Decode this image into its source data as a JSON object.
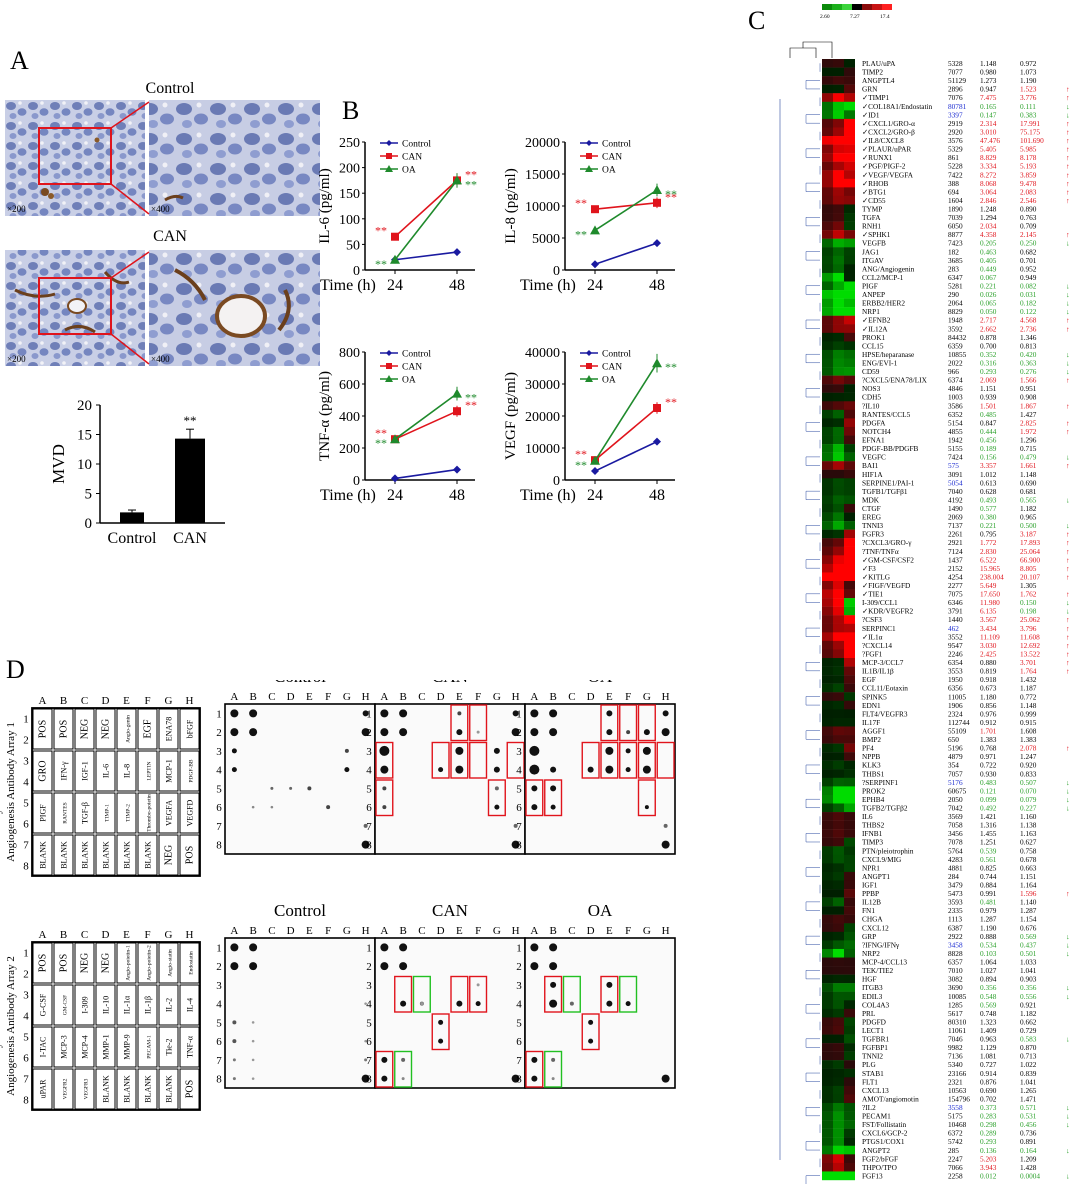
{
  "panels": {
    "a": "A",
    "b": "B",
    "c": "C",
    "d": "D"
  },
  "panel_a": {
    "control_label": "Control",
    "can_label": "CAN",
    "mag_200": "×200",
    "mag_400": "×400",
    "mvd_chart": {
      "type": "bar",
      "ylabel": "MVD",
      "categories": [
        "Control",
        "CAN"
      ],
      "values": [
        1.8,
        14.3
      ],
      "errors": [
        0.4,
        1.6
      ],
      "ylim": [
        0,
        20
      ],
      "yticks": [
        "0",
        "5",
        "10",
        "15",
        "20"
      ],
      "annotation": "**"
    }
  },
  "panel_b": {
    "legend": [
      "Control",
      "CAN",
      "OA"
    ],
    "xlabel": "Time (h)",
    "xticks": [
      "24",
      "48"
    ],
    "sig": "**",
    "charts": [
      {
        "ylabel": "IL-6 (pg/ml)",
        "yticks": [
          "0",
          "50",
          "100",
          "150",
          "200",
          "250"
        ],
        "ylim": [
          0,
          250
        ],
        "series": [
          {
            "name": "Control",
            "values": [
              20,
              35
            ]
          },
          {
            "name": "CAN",
            "values": [
              65,
              175
            ]
          },
          {
            "name": "OA",
            "values": [
              20,
              175
            ]
          }
        ]
      },
      {
        "ylabel": "IL-8 (pg/ml)",
        "yticks": [
          "0",
          "5000",
          "10000",
          "15000",
          "20000"
        ],
        "ylim": [
          0,
          20000
        ],
        "series": [
          {
            "name": "Control",
            "values": [
              900,
              4200
            ]
          },
          {
            "name": "CAN",
            "values": [
              9500,
              10500
            ]
          },
          {
            "name": "OA",
            "values": [
              6200,
              12500
            ]
          }
        ]
      },
      {
        "ylabel": "TNF-α (pg/ml)",
        "yticks": [
          "0",
          "200",
          "400",
          "600",
          "800"
        ],
        "ylim": [
          0,
          800
        ],
        "series": [
          {
            "name": "Control",
            "values": [
              10,
              65
            ]
          },
          {
            "name": "CAN",
            "values": [
              255,
              430
            ]
          },
          {
            "name": "OA",
            "values": [
              255,
              540
            ]
          }
        ]
      },
      {
        "ylabel": "VEGF (pg/ml)",
        "yticks": [
          "0",
          "10000",
          "20000",
          "30000",
          "40000"
        ],
        "ylim": [
          0,
          40000
        ],
        "series": [
          {
            "name": "Control",
            "values": [
              2800,
              12000
            ]
          },
          {
            "name": "CAN",
            "values": [
              6200,
              22500
            ]
          },
          {
            "name": "OA",
            "values": [
              6000,
              36500
            ]
          }
        ]
      }
    ]
  },
  "panel_c": {
    "color_scale": [
      "2.60",
      "7.27",
      "17.4"
    ],
    "genes": [
      [
        "PLAU/uPA",
        "5328",
        "1.148",
        "0.972",
        "",
        ""
      ],
      [
        "TIMP2",
        "7077",
        "0.980",
        "1.073",
        "",
        ""
      ],
      [
        "ANGPTL4",
        "51129",
        "1.273",
        "1.190",
        "",
        ""
      ],
      [
        "GRN",
        "2896",
        "0.947",
        "1.523",
        "",
        "r"
      ],
      [
        "✓TIMP1",
        "7076",
        "7.475",
        "3.776",
        "r",
        "r"
      ],
      [
        "✓COL18A1/Endostatin",
        "80781",
        "0.165",
        "0.111",
        "g",
        "g"
      ],
      [
        "✓ID1",
        "3397",
        "0.147",
        "0.383",
        "g",
        "g"
      ],
      [
        "✓CXCL1/GRO-α",
        "2919",
        "2.314",
        "17.991",
        "r",
        "r"
      ],
      [
        "✓CXCL2/GRO-β",
        "2920",
        "3.010",
        "75.175",
        "r",
        "r"
      ],
      [
        "✓IL8/CXCL8",
        "3576",
        "47.476",
        "101.690",
        "r",
        "r"
      ],
      [
        "✓PLAUR/uPAR",
        "5329",
        "5.405",
        "5.985",
        "r",
        "r"
      ],
      [
        "✓RUNX1",
        "861",
        "8.829",
        "8.178",
        "r",
        "r"
      ],
      [
        "✓PGF/PIGF-2",
        "5228",
        "3.334",
        "5.193",
        "r",
        "r"
      ],
      [
        "✓VEGF/VEGFA",
        "7422",
        "8.272",
        "3.859",
        "r",
        "r"
      ],
      [
        "✓RHOB",
        "388",
        "8.068",
        "9.478",
        "r",
        "r"
      ],
      [
        "✓BTG1",
        "694",
        "3.064",
        "2.083",
        "r",
        "r"
      ],
      [
        "✓CD55",
        "1604",
        "2.846",
        "2.546",
        "r",
        "r"
      ],
      [
        "TYMP",
        "1890",
        "1.248",
        "0.890",
        "",
        ""
      ],
      [
        "TGFA",
        "7039",
        "1.294",
        "0.763",
        "",
        ""
      ],
      [
        "RNH1",
        "6050",
        "2.034",
        "0.709",
        "r",
        ""
      ],
      [
        "✓SPHK1",
        "8877",
        "4.358",
        "2.145",
        "r",
        "r"
      ],
      [
        "VEGFB",
        "7423",
        "0.205",
        "0.250",
        "g",
        "g"
      ],
      [
        "JAG1",
        "182",
        "0.463",
        "0.682",
        "g",
        ""
      ],
      [
        "ITGAV",
        "3685",
        "0.405",
        "0.701",
        "g",
        ""
      ],
      [
        "ANG/Angiogenin",
        "283",
        "0.449",
        "0.952",
        "g",
        ""
      ],
      [
        "CCL2/MCP-1",
        "6347",
        "0.067",
        "0.949",
        "g",
        ""
      ],
      [
        "PIGF",
        "5281",
        "0.221",
        "0.082",
        "g",
        "g"
      ],
      [
        "ANPEP",
        "290",
        "0.026",
        "0.031",
        "g",
        "g"
      ],
      [
        "ERBB2/HER2",
        "2064",
        "0.065",
        "0.182",
        "g",
        "g"
      ],
      [
        "NRP1",
        "8829",
        "0.050",
        "0.122",
        "g",
        "g"
      ],
      [
        "✓EFNB2",
        "1948",
        "2.717",
        "4.568",
        "r",
        "r"
      ],
      [
        "✓IL12A",
        "3592",
        "2.662",
        "2.736",
        "r",
        "r"
      ],
      [
        "PROK1",
        "84432",
        "0.878",
        "1.346",
        "",
        ""
      ],
      [
        "CCL15",
        "6359",
        "0.700",
        "0.813",
        "",
        ""
      ],
      [
        "HPSE/heparanase",
        "10855",
        "0.352",
        "0.420",
        "g",
        "g"
      ],
      [
        "ENG/EVI-1",
        "2022",
        "0.316",
        "0.363",
        "g",
        "g"
      ],
      [
        "CD59",
        "966",
        "0.293",
        "0.276",
        "g",
        "g"
      ],
      [
        "?CXCL5/ENA78/LIX",
        "6374",
        "2.069",
        "1.566",
        "r",
        "r"
      ],
      [
        "NOS3",
        "4846",
        "1.151",
        "0.951",
        "",
        ""
      ],
      [
        "CDH5",
        "1003",
        "0.939",
        "0.908",
        "",
        ""
      ],
      [
        "?IL10",
        "3586",
        "1.501",
        "1.867",
        "r",
        "r"
      ],
      [
        "RANTES/CCL5",
        "6352",
        "0.485",
        "1.427",
        "g",
        ""
      ],
      [
        "PDGFA",
        "5154",
        "0.847",
        "2.825",
        "",
        "r"
      ],
      [
        "NOTCH4",
        "4855",
        "0.444",
        "1.972",
        "g",
        "r"
      ],
      [
        "EFNA1",
        "1942",
        "0.456",
        "1.296",
        "g",
        ""
      ],
      [
        "PDGF-BB/PDGFB",
        "5155",
        "0.189",
        "0.715",
        "g",
        ""
      ],
      [
        "VEGFC",
        "7424",
        "0.156",
        "0.479",
        "g",
        "g"
      ],
      [
        "BAI1",
        "575",
        "3.357",
        "1.661",
        "r",
        "r"
      ],
      [
        "HIF1A",
        "3091",
        "1.012",
        "1.148",
        "",
        ""
      ],
      [
        "SERPINE1/PAI-1",
        "5054",
        "0.613",
        "0.690",
        "",
        ""
      ],
      [
        "TGFB1/TGFβ1",
        "7040",
        "0.628",
        "0.681",
        "",
        ""
      ],
      [
        "MDK",
        "4192",
        "0.493",
        "0.565",
        "g",
        "g"
      ],
      [
        "CTGF",
        "1490",
        "0.577",
        "1.182",
        "g",
        ""
      ],
      [
        "EREG",
        "2069",
        "0.380",
        "0.965",
        "g",
        ""
      ],
      [
        "TNNI3",
        "7137",
        "0.221",
        "0.500",
        "g",
        "g"
      ],
      [
        "FGFR3",
        "2261",
        "0.795",
        "3.187",
        "",
        "r"
      ],
      [
        "?CXCL3/GRO-γ",
        "2921",
        "1.772",
        "17.893",
        "r",
        "r"
      ],
      [
        "?TNF/TNFα",
        "7124",
        "2.830",
        "25.064",
        "r",
        "r"
      ],
      [
        "✓GM-CSF/CSF2",
        "1437",
        "6.522",
        "66.900",
        "r",
        "r"
      ],
      [
        "✓F3",
        "2152",
        "15.965",
        "8.805",
        "r",
        "r"
      ],
      [
        "✓KITLG",
        "4254",
        "238.004",
        "20.107",
        "r",
        "r"
      ],
      [
        "✓FIGF/VEGFD",
        "2277",
        "5.649",
        "1.305",
        "r",
        ""
      ],
      [
        "✓TIE1",
        "7075",
        "17.650",
        "1.762",
        "r",
        "r"
      ],
      [
        "I-309/CCL1",
        "6346",
        "11.980",
        "0.150",
        "r",
        "g"
      ],
      [
        "✓KDR/VEGFR2",
        "3791",
        "6.135",
        "0.198",
        "r",
        "g"
      ],
      [
        "?CSF3",
        "1440",
        "3.567",
        "25.062",
        "r",
        "r"
      ],
      [
        "SERPINC1",
        "462",
        "3.434",
        "3.796",
        "r",
        "r"
      ],
      [
        "✓IL1α",
        "3552",
        "11.109",
        "11.608",
        "r",
        "r"
      ],
      [
        "?CXCL14",
        "9547",
        "3.030",
        "12.692",
        "r",
        "r"
      ],
      [
        "?FGF1",
        "2246",
        "2.425",
        "13.522",
        "r",
        "r"
      ],
      [
        "MCP-3/CCL7",
        "6354",
        "0.880",
        "3.701",
        "",
        "r"
      ],
      [
        "IL1B/IL1β",
        "3553",
        "0.819",
        "1.764",
        "",
        "r"
      ],
      [
        "EGF",
        "1950",
        "0.918",
        "1.432",
        "",
        ""
      ],
      [
        "CCL11/Eotaxin",
        "6356",
        "0.673",
        "1.187",
        "",
        ""
      ],
      [
        "SPINK5",
        "11005",
        "1.180",
        "0.772",
        "",
        ""
      ],
      [
        "EDN1",
        "1906",
        "0.856",
        "1.148",
        "",
        ""
      ],
      [
        "FLT4/VEGFR3",
        "2324",
        "0.976",
        "0.999",
        "",
        ""
      ],
      [
        "IL17F",
        "112744",
        "0.912",
        "0.915",
        "",
        ""
      ],
      [
        "AGGF1",
        "55109",
        "1.701",
        "1.608",
        "r",
        ""
      ],
      [
        "BMP2",
        "650",
        "1.383",
        "1.383",
        "",
        ""
      ],
      [
        "PF4",
        "5196",
        "0.768",
        "2.078",
        "",
        "r"
      ],
      [
        "NPPB",
        "4879",
        "0.971",
        "1.247",
        "",
        ""
      ],
      [
        "KLK3",
        "354",
        "0.722",
        "0.920",
        "",
        ""
      ],
      [
        "THBS1",
        "7057",
        "0.930",
        "0.833",
        "",
        ""
      ],
      [
        "?SERPINF1",
        "5176",
        "0.483",
        "0.507",
        "g",
        "g"
      ],
      [
        "PROK2",
        "60675",
        "0.121",
        "0.070",
        "g",
        "g"
      ],
      [
        "EPHB4",
        "2050",
        "0.099",
        "0.079",
        "g",
        "g"
      ],
      [
        "TGFB2/TGFβ2",
        "7042",
        "0.492",
        "0.227",
        "g",
        "g"
      ],
      [
        "IL6",
        "3569",
        "1.421",
        "1.160",
        "",
        ""
      ],
      [
        "THBS2",
        "7058",
        "1.316",
        "1.138",
        "",
        ""
      ],
      [
        "IFNB1",
        "3456",
        "1.455",
        "1.163",
        "",
        ""
      ],
      [
        "TIMP3",
        "7078",
        "1.251",
        "0.627",
        "",
        ""
      ],
      [
        "PTN/pleiotrophin",
        "5764",
        "0.539",
        "0.758",
        "g",
        ""
      ],
      [
        "CXCL9/MIG",
        "4283",
        "0.561",
        "0.678",
        "g",
        ""
      ],
      [
        "NPR1",
        "4881",
        "0.825",
        "0.663",
        "",
        ""
      ],
      [
        "ANGPT1",
        "284",
        "0.744",
        "1.151",
        "",
        ""
      ],
      [
        "IGF1",
        "3479",
        "0.884",
        "1.164",
        "",
        ""
      ],
      [
        "PPBP",
        "5473",
        "0.991",
        "1.596",
        "",
        "r"
      ],
      [
        "IL12B",
        "3593",
        "0.481",
        "1.140",
        "g",
        ""
      ],
      [
        "FN1",
        "2335",
        "0.979",
        "1.287",
        "",
        ""
      ],
      [
        "CHGA",
        "1113",
        "1.287",
        "1.154",
        "",
        ""
      ],
      [
        "CXCL12",
        "6387",
        "1.190",
        "0.676",
        "",
        ""
      ],
      [
        "GRP",
        "2922",
        "0.888",
        "0.569",
        "",
        "g"
      ],
      [
        "?IFNG/IFNγ",
        "3458",
        "0.534",
        "0.437",
        "g",
        "g"
      ],
      [
        "NRP2",
        "8828",
        "0.103",
        "0.501",
        "g",
        "g"
      ],
      [
        "MCP-4/CCL13",
        "6357",
        "1.064",
        "1.033",
        "",
        ""
      ],
      [
        "TEK/TIE2",
        "7010",
        "1.027",
        "1.041",
        "",
        ""
      ],
      [
        "HGF",
        "3082",
        "0.894",
        "0.903",
        "",
        ""
      ],
      [
        "ITGB3",
        "3690",
        "0.356",
        "0.356",
        "g",
        "g"
      ],
      [
        "EDIL3",
        "10085",
        "0.548",
        "0.556",
        "g",
        "g"
      ],
      [
        "COL4A3",
        "1285",
        "0.569",
        "0.921",
        "g",
        ""
      ],
      [
        "PRL",
        "5617",
        "0.748",
        "1.182",
        "",
        ""
      ],
      [
        "PDGFD",
        "80310",
        "1.323",
        "0.662",
        "",
        ""
      ],
      [
        "LECT1",
        "11061",
        "1.409",
        "0.729",
        "",
        ""
      ],
      [
        "TGFBR1",
        "7046",
        "0.963",
        "0.583",
        "",
        "g"
      ],
      [
        "FGFBP1",
        "9982",
        "1.129",
        "0.870",
        "",
        ""
      ],
      [
        "TNNI2",
        "7136",
        "1.081",
        "0.713",
        "",
        ""
      ],
      [
        "PLG",
        "5340",
        "0.727",
        "1.022",
        "",
        ""
      ],
      [
        "STAB1",
        "23166",
        "0.914",
        "0.839",
        "",
        ""
      ],
      [
        "FLT1",
        "2321",
        "0.876",
        "1.041",
        "",
        ""
      ],
      [
        "CXCL13",
        "10563",
        "0.690",
        "1.265",
        "",
        ""
      ],
      [
        "AMOT/angiomotin",
        "154796",
        "0.702",
        "1.471",
        "",
        ""
      ],
      [
        "?IL2",
        "3558",
        "0.373",
        "0.571",
        "g",
        "g"
      ],
      [
        "PECAM1",
        "5175",
        "0.283",
        "0.531",
        "g",
        "g"
      ],
      [
        "FST/Follistatin",
        "10468",
        "0.298",
        "0.456",
        "g",
        "g"
      ],
      [
        "CXCL6/GCP-2",
        "6372",
        "0.289",
        "0.736",
        "g",
        ""
      ],
      [
        "PTGS1/COX1",
        "5742",
        "0.293",
        "0.891",
        "g",
        ""
      ],
      [
        "ANGPT2",
        "285",
        "0.136",
        "0.164",
        "g",
        "g"
      ],
      [
        "FGF2/bFGF",
        "2247",
        "5.203",
        "1.209",
        "r",
        ""
      ],
      [
        "THPO/TPO",
        "7066",
        "3.943",
        "1.428",
        "r",
        ""
      ],
      [
        "FGF13",
        "2258",
        "0.012",
        "0.0004",
        "g",
        "g"
      ]
    ]
  },
  "panel_d": {
    "array1_title": [
      "RayBio Human",
      "Angiogenesis Antibody Array 1"
    ],
    "array2_title": [
      "RayBio Human",
      "Angiogenesis Antibody Array 2"
    ],
    "cols": [
      "A",
      "B",
      "C",
      "D",
      "E",
      "F",
      "G",
      "H"
    ],
    "rows": [
      "1",
      "2",
      "3",
      "4",
      "5",
      "6",
      "7",
      "8"
    ],
    "groups": [
      "Control",
      "CAN",
      "OA"
    ],
    "array1_grid": [
      [
        "POS",
        "POS",
        "NEG",
        "NEG",
        "Angio-genin",
        "EGF",
        "ENA78",
        "bFGF"
      ],
      [
        "GRO",
        "IFN-γ",
        "IGF-1",
        "IL-6",
        "IL-8",
        "LEPTIN",
        "MCP-1",
        "PDGF-BB"
      ],
      [
        "PIGF",
        "RANTES",
        "TGF-β",
        "TIMP-1",
        "TIMP-2",
        "Thrombo-poietin",
        "VEGFA",
        "VEGFD"
      ],
      [
        "BLANK",
        "BLANK",
        "BLANK",
        "BLANK",
        "BLANK",
        "BLANK",
        "NEG",
        "POS"
      ]
    ],
    "array2_grid": [
      [
        "POS",
        "POS",
        "NEG",
        "NEG",
        "Angio-poietin-1",
        "Angio-poietin-2",
        "Angio-statin",
        "Endostatin"
      ],
      [
        "G-CSF",
        "GM-CSF",
        "I-309",
        "IL-10",
        "IL-1α",
        "IL-1β",
        "IL-2",
        "IL-4"
      ],
      [
        "I-TAC",
        "MCP-3",
        "MCP-4",
        "MMP-1",
        "MMP-9",
        "PECAM-1",
        "Tie-2",
        "TNF-α"
      ],
      [
        "uPAR",
        "VEGFR2",
        "VEGFR3",
        "BLANK",
        "BLANK",
        "BLANK",
        "BLANK",
        "POS"
      ]
    ]
  }
}
